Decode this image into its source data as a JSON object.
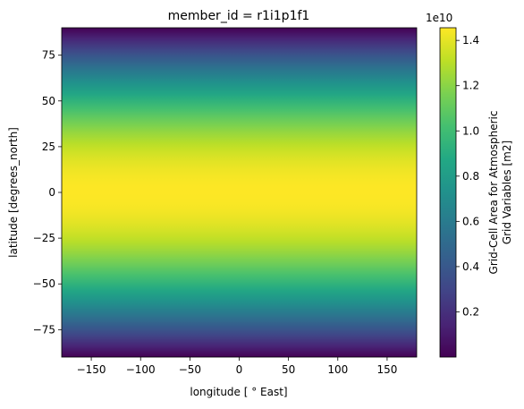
{
  "chart_data": {
    "type": "heatmap",
    "title": "member_id = r1i1p1f1",
    "xlabel": "longitude [$^\\circ$ East]",
    "xlabel_display": "longitude [ ° East]",
    "ylabel": "latitude [degrees_north]",
    "xlim": [
      -180,
      180
    ],
    "ylim": [
      -90,
      90
    ],
    "x_ticks": [
      -150,
      -100,
      -50,
      0,
      50,
      100,
      150
    ],
    "x_tick_labels": [
      "−150",
      "−100",
      "−50",
      "0",
      "50",
      "100",
      "150"
    ],
    "y_ticks": [
      -75,
      -50,
      -25,
      0,
      25,
      50,
      75
    ],
    "y_tick_labels": [
      "−75",
      "−50",
      "−25",
      "0",
      "25",
      "50",
      "75"
    ],
    "z_profile": "max cos(latitude), constant along longitude",
    "z_max": 14560000000.0,
    "z_min": 0.0,
    "colormap": "viridis",
    "colorbar": {
      "label_line1": "Grid-Cell Area for Atmospheric",
      "label_line2": "Grid Variables [m2]",
      "offset_text": "1e10",
      "ticks": [
        0.2,
        0.4,
        0.6,
        0.8,
        1.0,
        1.2,
        1.4
      ],
      "tick_labels": [
        "0.2",
        "0.4",
        "0.6",
        "0.8",
        "1.0",
        "1.2",
        "1.4"
      ],
      "range": [
        0.0,
        1.456
      ]
    },
    "colors": {
      "viridis": [
        "#440154",
        "#482475",
        "#414487",
        "#355f8d",
        "#2a788e",
        "#21918c",
        "#22a884",
        "#44bf70",
        "#7ad151",
        "#bddf26",
        "#fde725"
      ]
    }
  }
}
